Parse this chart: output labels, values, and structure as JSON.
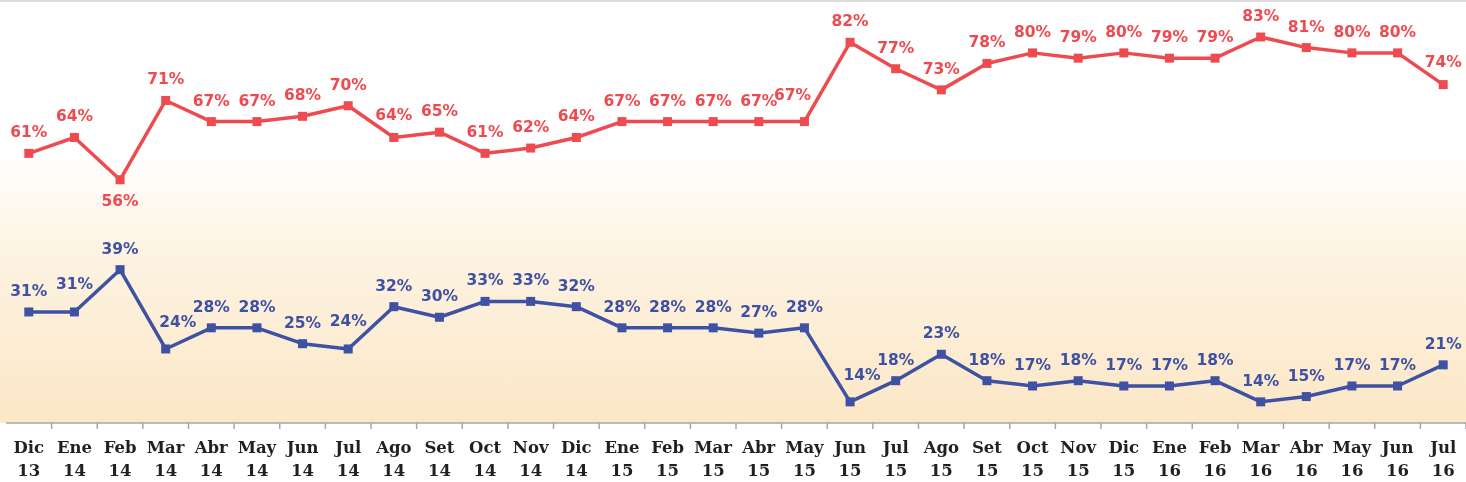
{
  "chart_data": {
    "type": "line",
    "categories": [
      "Dic 13",
      "Ene 14",
      "Feb 14",
      "Mar 14",
      "Abr 14",
      "May 14",
      "Jun 14",
      "Jul 14",
      "Ago 14",
      "Set 14",
      "Oct 14",
      "Nov 14",
      "Dic 14",
      "Ene 15",
      "Feb 15",
      "Mar 15",
      "Abr 15",
      "May 15",
      "Jun 15",
      "Jul 15",
      "Ago 15",
      "Set 15",
      "Oct 15",
      "Nov 15",
      "Dic 15",
      "Ene 16",
      "Feb 16",
      "Mar 16",
      "Abr 16",
      "May 16",
      "Jun 16",
      "Jul 16"
    ],
    "series": [
      {
        "color": "#ee4b50",
        "values": [
          61,
          64,
          56,
          71,
          67,
          67,
          68,
          70,
          64,
          65,
          61,
          62,
          64,
          67,
          67,
          67,
          67,
          67,
          82,
          77,
          73,
          78,
          80,
          79,
          80,
          79,
          79,
          83,
          81,
          80,
          80,
          74
        ],
        "value_labels": [
          "61%",
          "64%",
          "56%",
          "71%",
          "67%",
          "67%",
          "68%",
          "70%",
          "64%",
          "65%",
          "61%",
          "62%",
          "64%",
          "67%",
          "67%",
          "67%",
          "67%",
          "67%",
          "82%",
          "77%",
          "73%",
          "78%",
          "80%",
          "79%",
          "80%",
          "79%",
          "79%",
          "83%",
          "81%",
          "80%",
          "80%",
          "74%"
        ]
      },
      {
        "color": "#3f51a3",
        "values": [
          31,
          31,
          39,
          24,
          28,
          28,
          25,
          24,
          32,
          30,
          33,
          33,
          32,
          28,
          28,
          28,
          27,
          28,
          14,
          18,
          23,
          18,
          17,
          18,
          17,
          17,
          18,
          14,
          15,
          17,
          17,
          21
        ],
        "value_labels": [
          "31%",
          "31%",
          "39%",
          "24%",
          "28%",
          "28%",
          "25%",
          "24%",
          "32%",
          "30%",
          "33%",
          "33%",
          "32%",
          "28%",
          "28%",
          "28%",
          "27%",
          "28%",
          "14%",
          "18%",
          "23%",
          "18%",
          "17%",
          "18%",
          "17%",
          "17%",
          "18%",
          "14%",
          "15%",
          "17%",
          "17%",
          "21%"
        ]
      }
    ],
    "ylim": [
      10,
      90
    ],
    "marker": "square",
    "line_style": "solid",
    "tick_labels": "x"
  }
}
